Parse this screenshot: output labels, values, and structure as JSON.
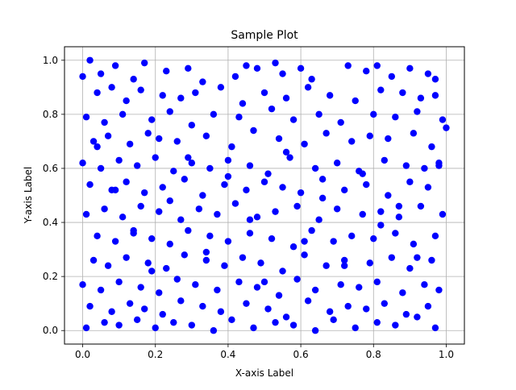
{
  "chart_data": {
    "type": "scatter",
    "title": "Sample Plot",
    "xlabel": "X-axis Label",
    "ylabel": "Y-axis Label",
    "xlim": [
      -0.05,
      1.05
    ],
    "ylim": [
      -0.05,
      1.05
    ],
    "xticks": [
      0.0,
      0.2,
      0.4,
      0.6,
      0.8,
      1.0
    ],
    "xtick_labels": [
      "0.0",
      "0.2",
      "0.4",
      "0.6",
      "0.8",
      "1.0"
    ],
    "yticks": [
      0.0,
      0.2,
      0.4,
      0.6,
      0.8,
      1.0
    ],
    "ytick_labels": [
      "0.0",
      "0.2",
      "0.4",
      "0.6",
      "0.8",
      "1.0"
    ],
    "grid": true,
    "marker_color": "#0000ff",
    "series": [
      {
        "x": [
          0.02,
          0.05,
          0.09,
          0.14,
          0.17,
          0.23,
          0.29,
          0.33,
          0.42,
          0.45,
          0.48,
          0.53,
          0.55,
          0.6,
          0.63,
          0.73,
          0.78,
          0.81,
          0.85,
          0.9,
          0.95,
          0.97,
          0.0,
          0.04,
          0.08,
          0.12,
          0.16,
          0.22,
          0.27,
          0.31,
          0.38,
          0.44,
          0.5,
          0.56,
          0.62,
          0.68,
          0.75,
          0.82,
          0.88,
          0.93,
          0.97,
          0.01,
          0.06,
          0.11,
          0.19,
          0.24,
          0.3,
          0.36,
          0.43,
          0.52,
          0.58,
          0.65,
          0.71,
          0.8,
          0.86,
          0.92,
          0.99,
          0.03,
          0.07,
          0.13,
          0.18,
          0.21,
          0.26,
          0.34,
          0.41,
          0.47,
          0.54,
          0.61,
          0.67,
          0.74,
          0.79,
          0.84,
          0.91,
          0.96,
          1.0,
          0.0,
          0.05,
          0.1,
          0.15,
          0.2,
          0.25,
          0.3,
          0.35,
          0.4,
          0.46,
          0.51,
          0.57,
          0.64,
          0.7,
          0.76,
          0.83,
          0.89,
          0.94,
          0.98,
          0.02,
          0.08,
          0.12,
          0.17,
          0.22,
          0.28,
          0.33,
          0.39,
          0.45,
          0.5,
          0.55,
          0.6,
          0.66,
          0.72,
          0.78,
          0.84,
          0.9,
          0.95,
          0.01,
          0.06,
          0.11,
          0.16,
          0.21,
          0.27,
          0.32,
          0.37,
          0.42,
          0.48,
          0.53,
          0.59,
          0.65,
          0.7,
          0.77,
          0.82,
          0.87,
          0.93,
          0.99,
          0.04,
          0.09,
          0.14,
          0.19,
          0.24,
          0.29,
          0.35,
          0.4,
          0.46,
          0.52,
          0.58,
          0.63,
          0.69,
          0.74,
          0.8,
          0.86,
          0.91,
          0.97,
          0.03,
          0.07,
          0.12,
          0.18,
          0.23,
          0.28,
          0.34,
          0.39,
          0.44,
          0.49,
          0.55,
          0.61,
          0.67,
          0.72,
          0.79,
          0.85,
          0.9,
          0.96,
          0.0,
          0.05,
          0.1,
          0.16,
          0.21,
          0.26,
          0.31,
          0.37,
          0.43,
          0.48,
          0.54,
          0.59,
          0.64,
          0.71,
          0.76,
          0.81,
          0.88,
          0.94,
          0.98,
          0.02,
          0.08,
          0.13,
          0.17,
          0.22,
          0.27,
          0.33,
          0.38,
          0.45,
          0.51,
          0.56,
          0.62,
          0.68,
          0.73,
          0.78,
          0.83,
          0.89,
          0.95,
          0.01,
          0.06,
          0.1,
          0.15,
          0.2,
          0.25,
          0.3,
          0.36,
          0.41,
          0.47,
          0.53,
          0.58,
          0.64,
          0.69,
          0.75,
          0.81,
          0.86,
          0.92,
          0.97,
          0.04,
          0.09,
          0.14,
          0.19,
          0.24,
          0.29,
          0.34,
          0.4,
          0.46,
          0.5,
          0.56,
          0.61,
          0.66,
          0.72,
          0.77,
          0.82,
          0.87,
          0.92,
          0.98
        ],
        "y": [
          1.0,
          0.95,
          0.98,
          0.93,
          0.99,
          0.96,
          0.97,
          0.92,
          0.94,
          0.98,
          0.97,
          0.99,
          0.95,
          0.97,
          0.93,
          0.98,
          0.96,
          0.98,
          0.94,
          0.97,
          0.95,
          0.93,
          0.94,
          0.88,
          0.9,
          0.85,
          0.89,
          0.87,
          0.86,
          0.88,
          0.9,
          0.84,
          0.88,
          0.86,
          0.9,
          0.87,
          0.85,
          0.89,
          0.88,
          0.86,
          0.87,
          0.79,
          0.77,
          0.8,
          0.78,
          0.81,
          0.76,
          0.8,
          0.79,
          0.82,
          0.78,
          0.8,
          0.77,
          0.8,
          0.79,
          0.81,
          0.78,
          0.7,
          0.72,
          0.69,
          0.73,
          0.71,
          0.7,
          0.72,
          0.68,
          0.74,
          0.71,
          0.69,
          0.73,
          0.7,
          0.72,
          0.71,
          0.73,
          0.68,
          0.75,
          0.62,
          0.6,
          0.63,
          0.61,
          0.64,
          0.59,
          0.62,
          0.6,
          0.63,
          0.61,
          0.58,
          0.64,
          0.6,
          0.62,
          0.59,
          0.63,
          0.61,
          0.6,
          0.62,
          0.54,
          0.52,
          0.55,
          0.51,
          0.53,
          0.56,
          0.5,
          0.54,
          0.52,
          0.55,
          0.53,
          0.51,
          0.56,
          0.52,
          0.54,
          0.5,
          0.55,
          0.53,
          0.43,
          0.45,
          0.42,
          0.46,
          0.44,
          0.41,
          0.45,
          0.43,
          0.47,
          0.42,
          0.44,
          0.46,
          0.41,
          0.45,
          0.43,
          0.44,
          0.42,
          0.46,
          0.43,
          0.35,
          0.33,
          0.36,
          0.34,
          0.32,
          0.37,
          0.35,
          0.33,
          0.36,
          0.34,
          0.31,
          0.37,
          0.33,
          0.35,
          0.34,
          0.36,
          0.32,
          0.35,
          0.26,
          0.24,
          0.27,
          0.25,
          0.23,
          0.28,
          0.26,
          0.24,
          0.27,
          0.25,
          0.22,
          0.28,
          0.24,
          0.26,
          0.25,
          0.27,
          0.23,
          0.26,
          0.17,
          0.15,
          0.18,
          0.16,
          0.14,
          0.19,
          0.17,
          0.15,
          0.18,
          0.16,
          0.13,
          0.19,
          0.15,
          0.17,
          0.16,
          0.18,
          0.14,
          0.17,
          0.15,
          0.09,
          0.07,
          0.1,
          0.08,
          0.06,
          0.11,
          0.09,
          0.07,
          0.1,
          0.08,
          0.05,
          0.11,
          0.07,
          0.09,
          0.08,
          0.1,
          0.06,
          0.09,
          0.01,
          0.03,
          0.02,
          0.04,
          0.01,
          0.03,
          0.02,
          0.0,
          0.04,
          0.01,
          0.03,
          0.02,
          0.0,
          0.04,
          0.01,
          0.03,
          0.02,
          0.05,
          0.01,
          0.68,
          0.52,
          0.37,
          0.22,
          0.48,
          0.64,
          0.29,
          0.57,
          0.41,
          0.18,
          0.66,
          0.33,
          0.49,
          0.24,
          0.58,
          0.39,
          0.46,
          0.27,
          0.61
        ]
      }
    ]
  }
}
